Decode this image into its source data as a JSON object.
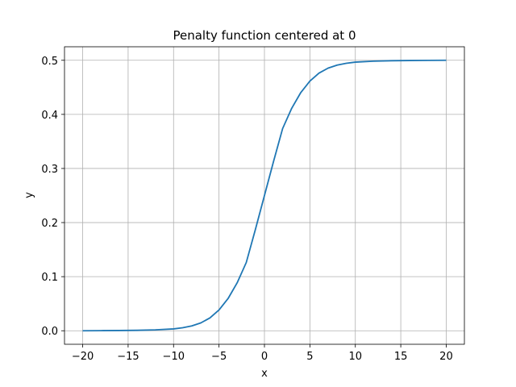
{
  "chart_data": {
    "type": "line",
    "title": "Penalty function centered at 0",
    "xlabel": "x",
    "ylabel": "y",
    "xlim": [
      -22,
      22
    ],
    "ylim": [
      -0.025,
      0.525
    ],
    "grid": true,
    "xticks": [
      -20,
      -15,
      -10,
      -5,
      0,
      5,
      10,
      15,
      20
    ],
    "yticks": [
      0.0,
      0.1,
      0.2,
      0.3,
      0.4,
      0.5
    ],
    "xtick_labels": [
      "−20",
      "−15",
      "−10",
      "−5",
      "0",
      "5",
      "10",
      "15",
      "20"
    ],
    "ytick_labels": [
      "0.0",
      "0.1",
      "0.2",
      "0.3",
      "0.4",
      "0.5"
    ],
    "series": [
      {
        "color": "#1f77b4",
        "x": [
          -20,
          -18,
          -16,
          -14,
          -12,
          -10,
          -9,
          -8,
          -7,
          -6,
          -5,
          -4,
          -3,
          -2,
          -1,
          0,
          1,
          2,
          3,
          4,
          5,
          6,
          7,
          8,
          9,
          10,
          12,
          14,
          16,
          18,
          20
        ],
        "y": [
          0.0,
          0.0002,
          0.0004,
          0.0008,
          0.0016,
          0.0034,
          0.0055,
          0.0089,
          0.0145,
          0.0237,
          0.0384,
          0.0596,
          0.0887,
          0.1262,
          0.187,
          0.25,
          0.313,
          0.3738,
          0.4113,
          0.4404,
          0.4616,
          0.4763,
          0.4855,
          0.4911,
          0.4945,
          0.4966,
          0.4984,
          0.4992,
          0.4996,
          0.4998,
          0.5
        ]
      }
    ]
  }
}
